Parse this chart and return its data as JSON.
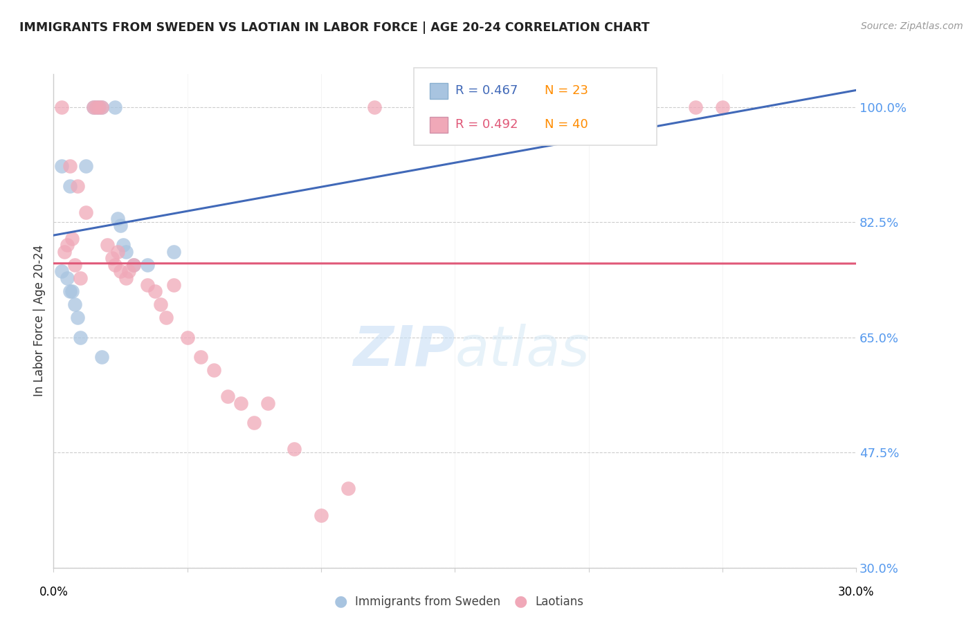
{
  "title": "IMMIGRANTS FROM SWEDEN VS LAOTIAN IN LABOR FORCE | AGE 20-24 CORRELATION CHART",
  "source": "Source: ZipAtlas.com",
  "ylabel": "In Labor Force | Age 20-24",
  "xmin": 0.0,
  "xmax": 30.0,
  "ymin": 30.0,
  "ymax": 105.0,
  "ytick_values": [
    30.0,
    47.5,
    65.0,
    82.5,
    100.0
  ],
  "ytick_labels": [
    "30.0%",
    "47.5%",
    "65.0%",
    "82.5%",
    "100.0%"
  ],
  "xtick_label_left": "0.0%",
  "xtick_label_right": "30.0%",
  "grid_color": "#cccccc",
  "background_color": "#ffffff",
  "sweden_color": "#a8c4e0",
  "laotian_color": "#f0a8b8",
  "sweden_line_color": "#4169b8",
  "laotian_line_color": "#e05878",
  "sweden_R": 0.467,
  "sweden_N": 23,
  "laotian_R": 0.492,
  "laotian_N": 40,
  "legend_R_blue": "#4169b8",
  "legend_N_orange": "#ff8c00",
  "watermark_color": "#ddeeff",
  "right_label_color": "#5599ee",
  "sweden_x": [
    0.3,
    0.6,
    1.2,
    1.5,
    1.6,
    1.7,
    1.8,
    2.3,
    2.4,
    2.5,
    2.6,
    2.7,
    3.0,
    3.5,
    4.5,
    0.3,
    0.5,
    0.6,
    0.7,
    0.8,
    0.9,
    1.0,
    1.8
  ],
  "sweden_y": [
    91.0,
    88.0,
    91.0,
    100.0,
    100.0,
    100.0,
    100.0,
    100.0,
    83.0,
    82.0,
    79.0,
    78.0,
    76.0,
    76.0,
    78.0,
    75.0,
    74.0,
    72.0,
    72.0,
    70.0,
    68.0,
    65.0,
    62.0
  ],
  "laotian_x": [
    0.3,
    0.6,
    0.9,
    1.2,
    1.5,
    1.6,
    1.7,
    1.8,
    2.0,
    2.2,
    2.3,
    2.4,
    2.5,
    2.7,
    2.8,
    3.0,
    3.5,
    4.0,
    4.2,
    4.5,
    5.0,
    5.5,
    6.0,
    6.5,
    7.0,
    7.5,
    8.0,
    9.0,
    10.0,
    11.0,
    12.0,
    14.0,
    24.0,
    25.0,
    0.4,
    0.5,
    0.7,
    0.8,
    1.0,
    3.8
  ],
  "laotian_y": [
    100.0,
    91.0,
    88.0,
    84.0,
    100.0,
    100.0,
    100.0,
    100.0,
    79.0,
    77.0,
    76.0,
    78.0,
    75.0,
    74.0,
    75.0,
    76.0,
    73.0,
    70.0,
    68.0,
    73.0,
    65.0,
    62.0,
    60.0,
    56.0,
    55.0,
    52.0,
    55.0,
    48.0,
    38.0,
    42.0,
    100.0,
    100.0,
    100.0,
    100.0,
    78.0,
    79.0,
    80.0,
    76.0,
    74.0,
    72.0
  ]
}
